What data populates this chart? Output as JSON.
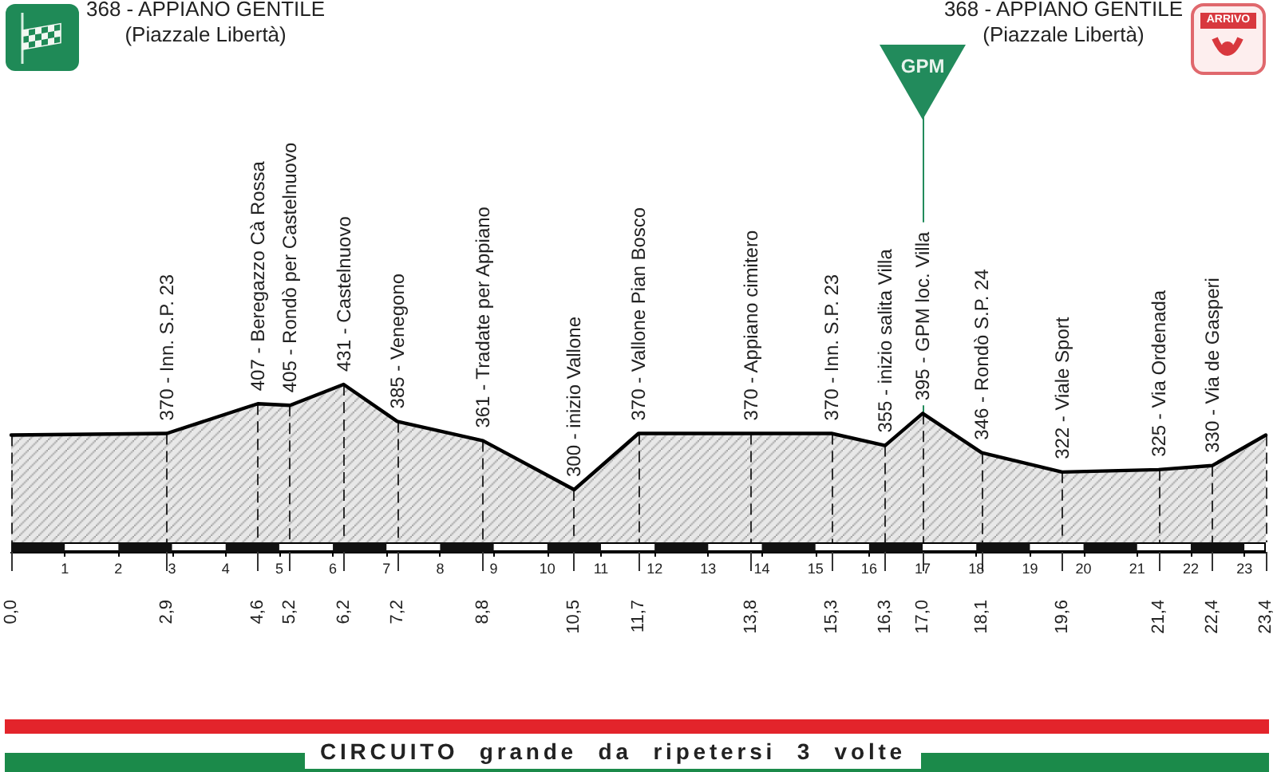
{
  "chart_data": {
    "type": "area",
    "title": "CIRCUITO grande da ripetersi 3 volte",
    "x": [
      0,
      2.9,
      4.6,
      5.2,
      6.2,
      7.2,
      8.8,
      10.5,
      11.7,
      13.8,
      15.3,
      16.3,
      17.0,
      18.1,
      19.6,
      21.4,
      22.4,
      23.4
    ],
    "values": [
      368,
      370,
      407,
      405,
      431,
      385,
      361,
      300,
      370,
      370,
      370,
      355,
      395,
      346,
      322,
      325,
      330,
      368
    ],
    "value_labels": [
      null,
      "370 - Inn. S.P. 23",
      "407 - Beregazzo Cà Rossa",
      "405 - Rondò per Castelnuovo",
      "431 - Castelnuovo",
      "385 - Venegono",
      "361 - Tradate per Appiano",
      "300 - inizio Vallone",
      "370 - Vallone Pian Bosco",
      "370 - Appiano cimitero",
      "370 - Inn. S.P. 23",
      "355 - inizio salita Villa",
      "395 - GPM loc. Villa",
      "346 - Rondò S.P. 24",
      "322 - Viale Sport",
      "325 - Via Ordenada",
      "330 - Via de Gasperi",
      null
    ],
    "color": "#000000",
    "xlim": [
      0,
      23.4
    ],
    "xticks": [
      1,
      2,
      3,
      4,
      5,
      6,
      7,
      8,
      9,
      10,
      11,
      12,
      13,
      14,
      15,
      16,
      17,
      18,
      19,
      20,
      21,
      22,
      23
    ],
    "x2lim": [
      0,
      23.4
    ],
    "x2ticks": [
      {
        "value": 0,
        "label": "0,0"
      },
      {
        "value": 2.9,
        "label": "2,9"
      },
      {
        "value": 4.6,
        "label": "4,6"
      },
      {
        "value": 5.2,
        "label": "5,2"
      },
      {
        "value": 6.2,
        "label": "6,2"
      },
      {
        "value": 7.2,
        "label": "7,2"
      },
      {
        "value": 8.8,
        "label": "8,8"
      },
      {
        "value": 10.5,
        "label": "10,5"
      },
      {
        "value": 11.7,
        "label": "11,7"
      },
      {
        "value": 13.8,
        "label": "13,8"
      },
      {
        "value": 15.3,
        "label": "15,3"
      },
      {
        "value": 16.3,
        "label": "16,3"
      },
      {
        "value": 17.0,
        "label": "17,0"
      },
      {
        "value": 18.1,
        "label": "18,1"
      },
      {
        "value": 19.6,
        "label": "19,6"
      },
      {
        "value": 21.4,
        "label": "21,4"
      },
      {
        "value": 22.4,
        "label": "22,4"
      },
      {
        "value": 23.4,
        "label": "23,4"
      }
    ],
    "annotations": [
      "368 - APPIANO GENTILE\n(Piazzale Libertà)",
      "368 - APPIANO GENTILE\n(Piazzale Libertà)",
      {
        "text": "GPM",
        "x": 17.0,
        "y": 395
      },
      "ARRIVO"
    ]
  }
}
